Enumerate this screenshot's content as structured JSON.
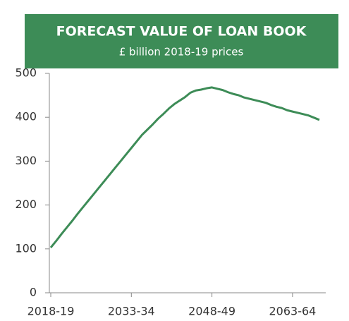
{
  "chart_data": {
    "type": "line",
    "title": "FORECAST VALUE OF LOAN BOOK",
    "subtitle": "£ billion 2018-19 prices",
    "categories": [
      "2018-19",
      null,
      null,
      null,
      null,
      null,
      null,
      null,
      null,
      null,
      null,
      null,
      null,
      null,
      null,
      "2033-34",
      null,
      null,
      null,
      null,
      null,
      null,
      null,
      null,
      null,
      null,
      null,
      null,
      null,
      null,
      "2048-49",
      null,
      null,
      null,
      null,
      null,
      null,
      null,
      null,
      null,
      null,
      null,
      null,
      null,
      null,
      "2063-64",
      null,
      null,
      null,
      null,
      null
    ],
    "series": [
      {
        "name": "Forecast value of loan book",
        "color": "#3d8c57",
        "values": [
          103,
          118,
          134,
          149,
          164,
          180,
          195,
          210,
          225,
          240,
          255,
          270,
          285,
          300,
          315,
          330,
          345,
          360,
          372,
          384,
          397,
          408,
          420,
          430,
          438,
          446,
          456,
          461,
          463,
          466,
          468,
          465,
          462,
          457,
          453,
          450,
          445,
          442,
          439,
          436,
          433,
          428,
          424,
          421,
          416,
          413,
          410,
          407,
          404,
          399,
          394
        ]
      }
    ],
    "ylim": [
      0,
      500
    ],
    "yticks": [
      0,
      100,
      200,
      300,
      400,
      500
    ]
  }
}
